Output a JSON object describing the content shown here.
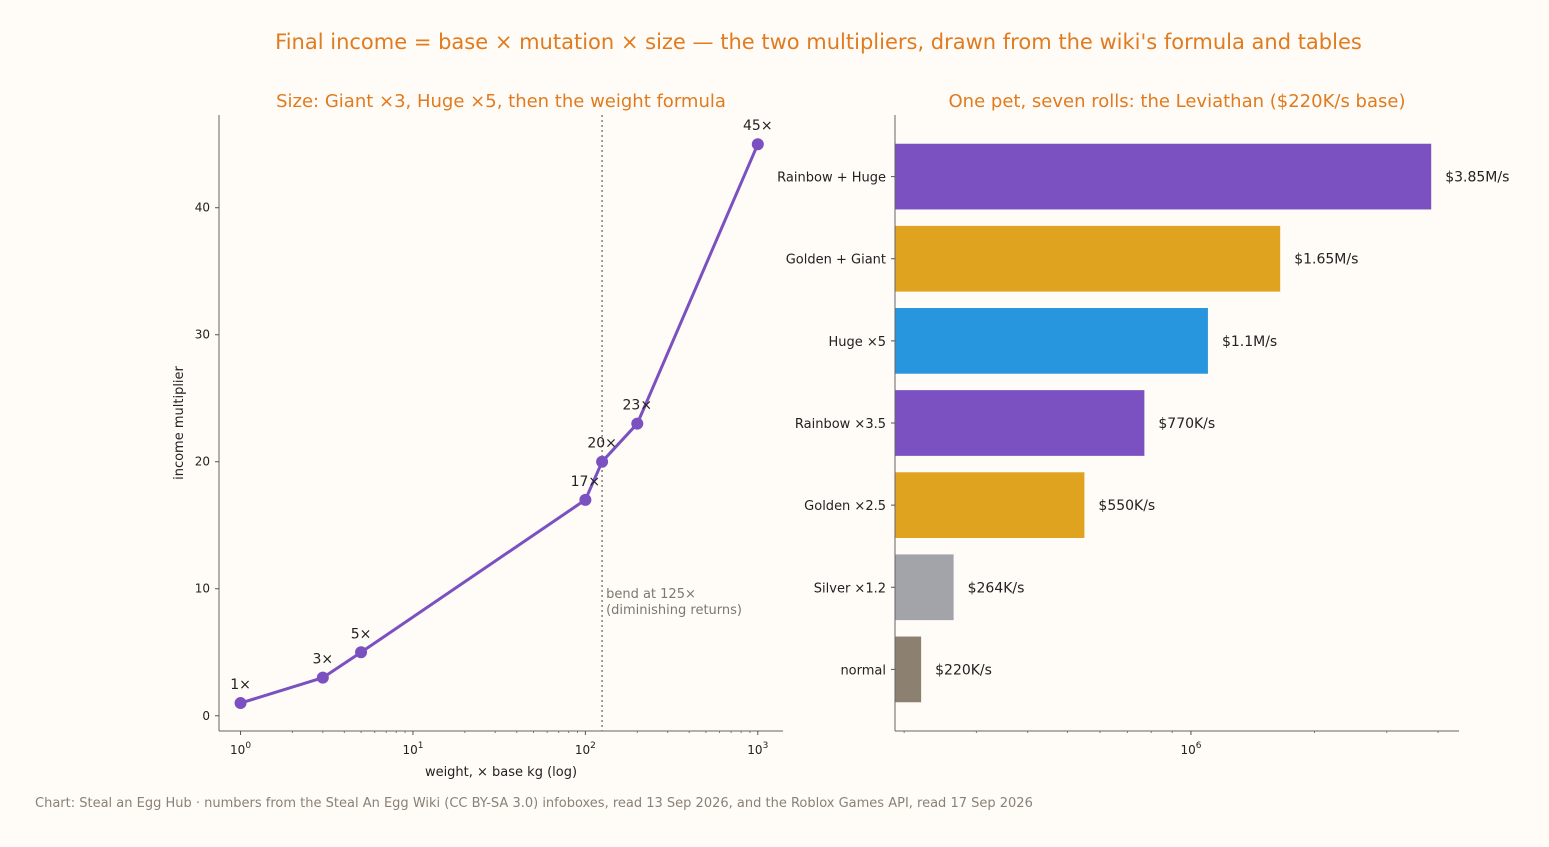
{
  "suptitle": "Final income = base × mutation × size — the two multipliers, drawn from the wiki's formula and tables",
  "footer": "Chart: Steal an Egg Hub · numbers from the Steal An Egg Wiki (CC BY-SA 3.0) infoboxes, read 13 Sep 2026, and the Roblox Games API, read 17 Sep 2026",
  "colors": {
    "title": "#e07b1f",
    "purple": "#7b50c0",
    "gold": "#e0a320",
    "blue": "#2896de",
    "silver": "#a3a3aa",
    "normal": "#8c8070",
    "annotation": "#7e7770",
    "background": "#fffbf6"
  },
  "chart_data": [
    {
      "type": "line",
      "title": "Size: Giant ×3, Huge ×5, then the weight formula",
      "xlabel": "weight, × base kg (log)",
      "ylabel": "income multiplier",
      "xscale": "log",
      "xlim": [
        0.75,
        1400
      ],
      "ylim": [
        -1.2,
        47.3
      ],
      "xticks": [
        1,
        10,
        100,
        1000
      ],
      "xtick_labels": [
        {
          "base": "10",
          "exp": "0"
        },
        {
          "base": "10",
          "exp": "1"
        },
        {
          "base": "10",
          "exp": "2"
        },
        {
          "base": "10",
          "exp": "3"
        }
      ],
      "yticks": [
        0,
        10,
        20,
        30,
        40
      ],
      "grid": false,
      "series": [
        {
          "x": [
            1,
            3,
            5,
            100,
            125,
            200,
            1000
          ],
          "y": [
            1,
            3,
            5,
            17,
            20,
            23,
            45
          ],
          "labels": [
            "1×",
            "3×",
            "5×",
            "17×",
            "20×",
            "23×",
            "45×"
          ]
        }
      ],
      "reference_line": {
        "x": 125,
        "label_line1": "bend at 125×",
        "label_line2": "(diminishing returns)"
      }
    },
    {
      "type": "bar",
      "orientation": "horizontal",
      "title": "One pet, seven rolls: the Leviathan ($220K/s base)",
      "xscale": "log",
      "xlim": [
        190000,
        4500000
      ],
      "xticks": [
        1000000
      ],
      "xtick_labels": [
        {
          "base": "10",
          "exp": "6"
        }
      ],
      "grid": false,
      "categories": [
        "Rainbow + Huge",
        "Golden + Giant",
        "Huge ×5",
        "Rainbow ×3.5",
        "Golden ×2.5",
        "Silver ×1.2",
        "normal"
      ],
      "values": [
        3850000,
        1650000,
        1100000,
        770000,
        550000,
        264000,
        220000
      ],
      "value_labels": [
        "$3.85M/s",
        "$1.65M/s",
        "$1.1M/s",
        "$770K/s",
        "$550K/s",
        "$264K/s",
        "$220K/s"
      ],
      "bar_colors": [
        "#7b50c0",
        "#e0a320",
        "#2896de",
        "#7b50c0",
        "#e0a320",
        "#a3a3aa",
        "#8c8070"
      ]
    }
  ]
}
